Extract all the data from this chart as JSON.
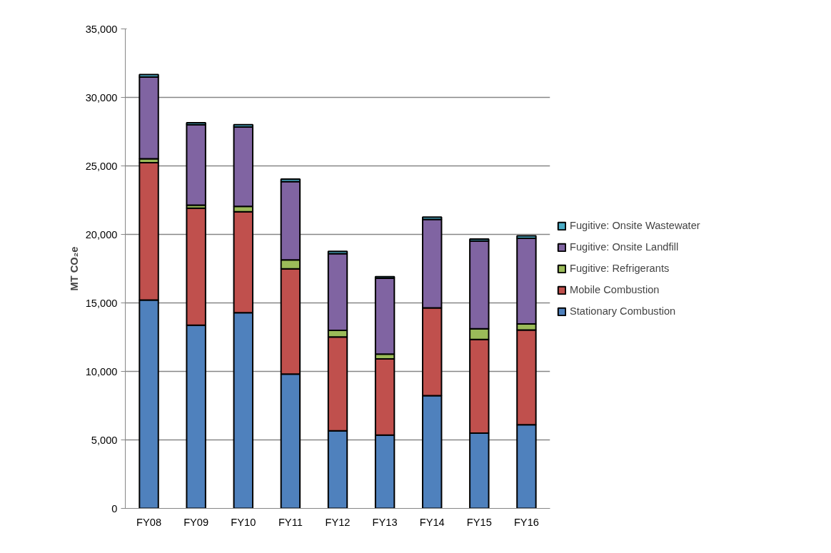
{
  "chart_data": {
    "type": "bar",
    "stacked": true,
    "ylabel": "MT CO₂e",
    "categories": [
      "FY08",
      "FY09",
      "FY10",
      "FY11",
      "FY12",
      "FY13",
      "FY14",
      "FY15",
      "FY16"
    ],
    "series": [
      {
        "name": "Stationary Combustion",
        "color": "#4f81bd",
        "values": [
          15210,
          13370,
          14290,
          9800,
          5670,
          5350,
          8230,
          5490,
          6110
        ]
      },
      {
        "name": "Mobile Combustion",
        "color": "#c0504d",
        "values": [
          10030,
          8540,
          7360,
          7690,
          6840,
          5560,
          6410,
          6840,
          6910
        ]
      },
      {
        "name": "Fugitive: Refrigerants",
        "color": "#9bbb59",
        "values": [
          280,
          230,
          400,
          650,
          480,
          350,
          null,
          780,
          440
        ]
      },
      {
        "name": "Fugitive: Onsite Landfill",
        "color": "#8064a2",
        "values": [
          5960,
          5870,
          5790,
          5720,
          5600,
          5540,
          6460,
          6410,
          6250
        ]
      },
      {
        "name": "Fugitive: Onsite Wastewater",
        "color": "#4bacc6",
        "values": [
          190,
          140,
          170,
          170,
          170,
          120,
          160,
          140,
          180
        ]
      }
    ],
    "ylim": [
      0,
      35000
    ],
    "yticks": [
      {
        "value": 0,
        "label": "0"
      },
      {
        "value": 5000,
        "label": "5,000"
      },
      {
        "value": 10000,
        "label": "10,000"
      },
      {
        "value": 15000,
        "label": "15,000"
      },
      {
        "value": 20000,
        "label": "20,000"
      },
      {
        "value": 25000,
        "label": "25,000"
      },
      {
        "value": 30000,
        "label": "30,000"
      },
      {
        "value": 35000,
        "label": "35,000"
      }
    ],
    "grid": "y",
    "legend": "right"
  }
}
